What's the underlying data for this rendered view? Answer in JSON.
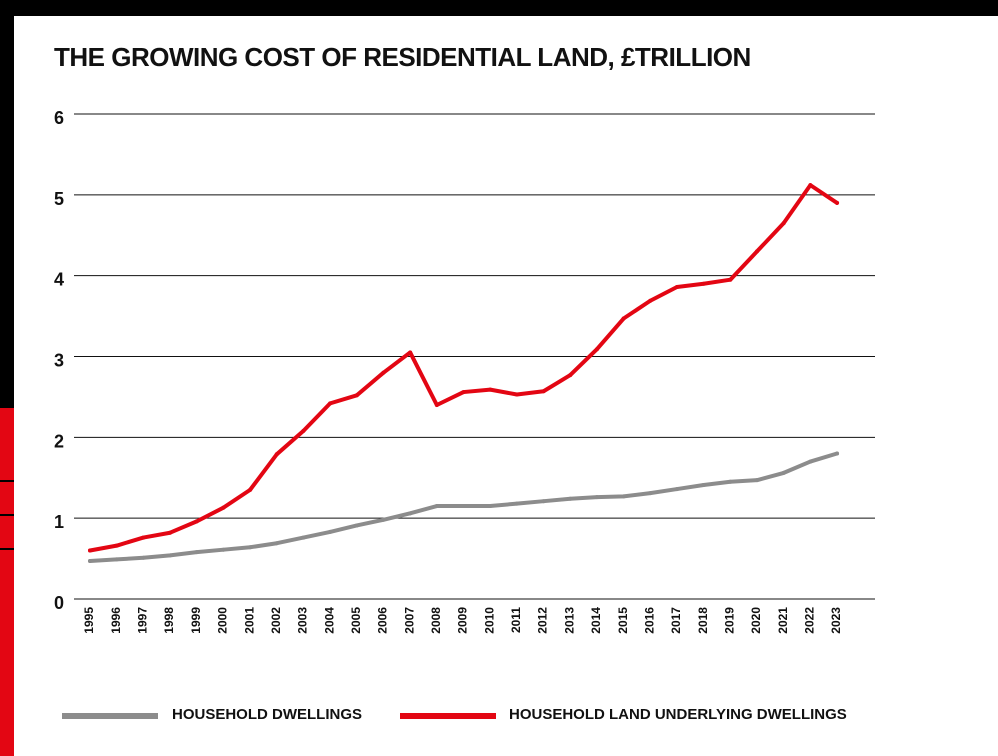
{
  "chart_data": {
    "type": "line",
    "title": "THE GROWING COST OF RESIDENTIAL LAND, £TRILLION",
    "xlabel": "",
    "ylabel": "",
    "ylim": [
      0,
      6
    ],
    "yticks": [
      "0",
      "1",
      "2",
      "3",
      "4",
      "5",
      "6"
    ],
    "grid": true,
    "legend_position": "bottom",
    "categories": [
      "1995",
      "1996",
      "1997",
      "1998",
      "1999",
      "2000",
      "2001",
      "2002",
      "2003",
      "2004",
      "2005",
      "2006",
      "2007",
      "2008",
      "2009",
      "2010",
      "2011",
      "2012",
      "2013",
      "2014",
      "2015",
      "2016",
      "2017",
      "2018",
      "2019",
      "2020",
      "2021",
      "2022",
      "2023"
    ],
    "series": [
      {
        "name": "HOUSEHOLD DWELLINGS",
        "color": "#8c8c8c",
        "values": [
          0.47,
          0.49,
          0.51,
          0.54,
          0.58,
          0.61,
          0.64,
          0.69,
          0.76,
          0.83,
          0.91,
          0.98,
          1.06,
          1.15,
          1.15,
          1.15,
          1.18,
          1.21,
          1.24,
          1.26,
          1.27,
          1.31,
          1.36,
          1.41,
          1.45,
          1.47,
          1.56,
          1.7,
          1.8
        ]
      },
      {
        "name": "HOUSEHOLD LAND UNDERLYING DWELLINGS",
        "color": "#e30613",
        "values": [
          0.6,
          0.66,
          0.76,
          0.82,
          0.96,
          1.13,
          1.35,
          1.79,
          2.08,
          2.42,
          2.52,
          2.8,
          3.05,
          2.4,
          2.56,
          2.59,
          2.53,
          2.57,
          2.77,
          3.09,
          3.47,
          3.69,
          3.86,
          3.9,
          3.95,
          4.3,
          4.65,
          5.12,
          4.9
        ]
      }
    ]
  }
}
